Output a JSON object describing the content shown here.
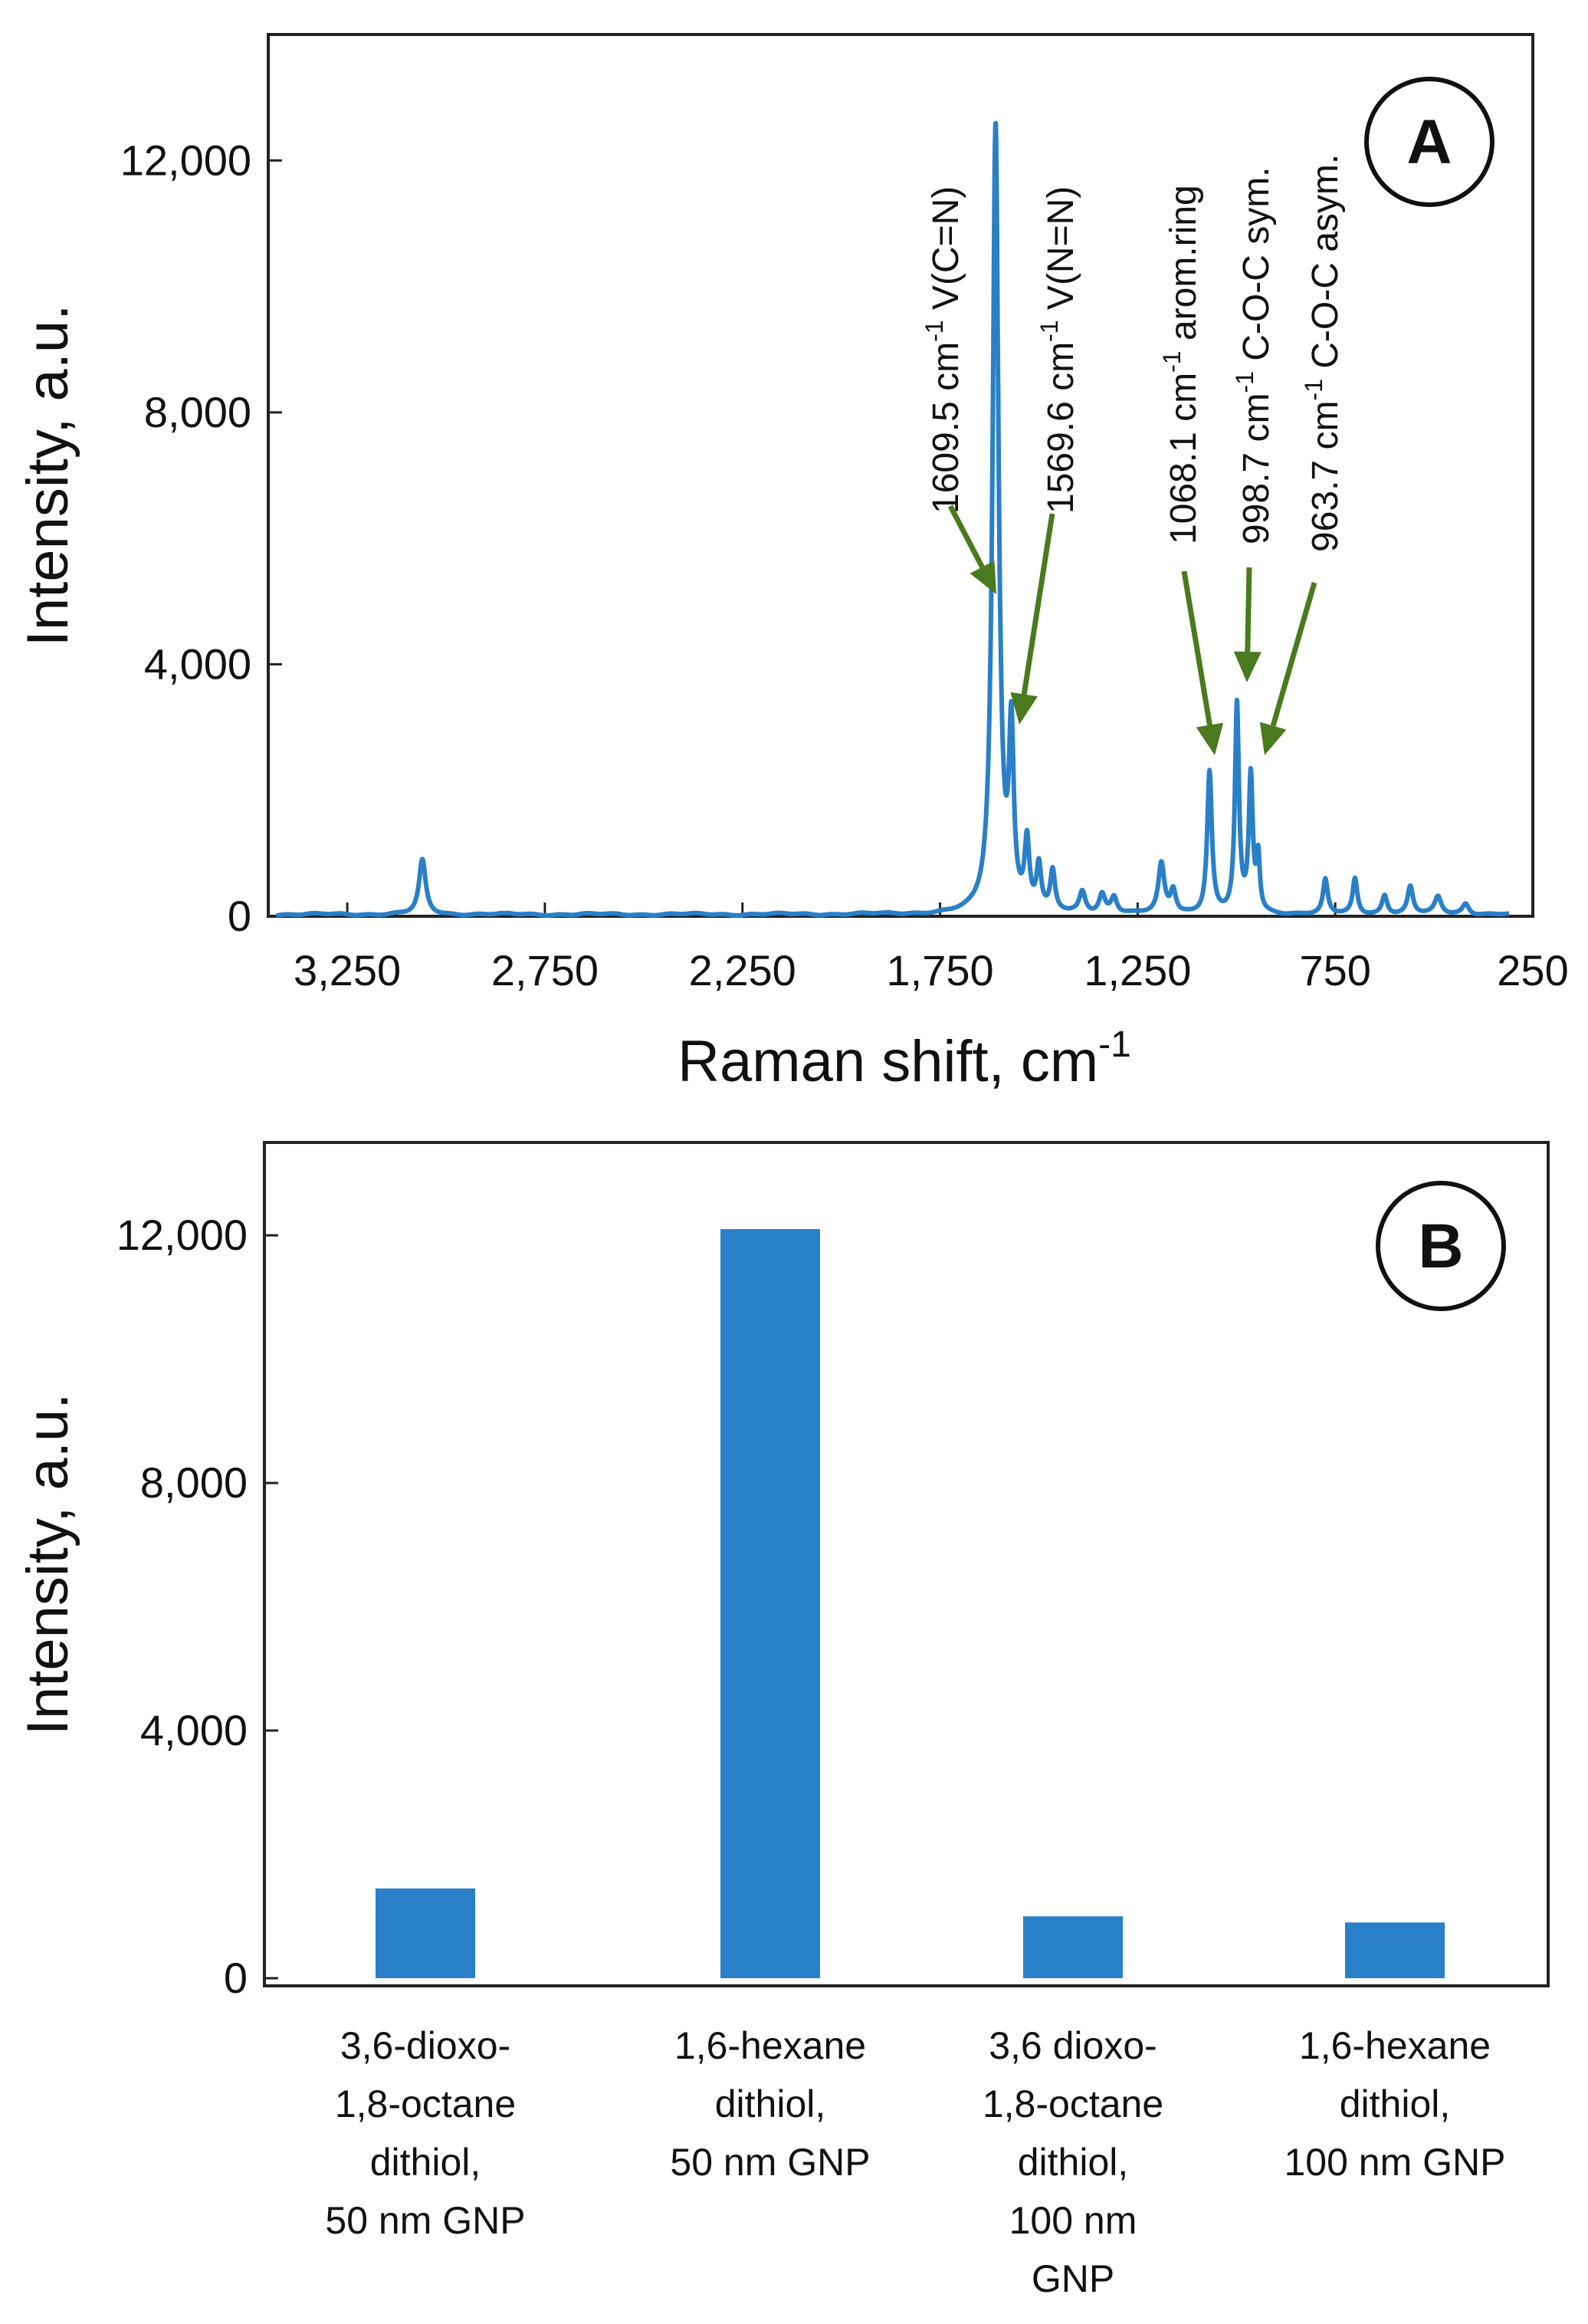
{
  "chart_data": [
    {
      "panel": "A",
      "type": "line",
      "xlabel": "Raman shift,  cm",
      "xlabel_sup": "-1",
      "ylabel": "Intensity,  a.u.",
      "xlim": [
        3450,
        250
      ],
      "ylim": [
        0,
        14000
      ],
      "x_axis_reversed": true,
      "x_ticks": [
        3250,
        2750,
        2250,
        1750,
        1250,
        750,
        250
      ],
      "x_tick_labels": [
        "3,250",
        "2,750",
        "2,250",
        "1,750",
        "1,250",
        "750",
        "250"
      ],
      "y_ticks": [
        0,
        4000,
        8000,
        12000
      ],
      "y_tick_labels": [
        "0",
        "4,000",
        "8,000",
        "12,000"
      ],
      "grid": false,
      "line_color": "#2a7fc9",
      "series": [
        {
          "peaks": [
            {
              "x": 3060,
              "y": 860,
              "w": 10
            },
            {
              "x": 1609.5,
              "y": 12500,
              "w": 9
            },
            {
              "x": 1569.6,
              "y": 2750,
              "w": 7
            },
            {
              "x": 1530,
              "y": 1050,
              "w": 7
            },
            {
              "x": 1500,
              "y": 700,
              "w": 7
            },
            {
              "x": 1465,
              "y": 620,
              "w": 7
            },
            {
              "x": 1390,
              "y": 330,
              "w": 9
            },
            {
              "x": 1340,
              "y": 300,
              "w": 9
            },
            {
              "x": 1310,
              "y": 260,
              "w": 9
            },
            {
              "x": 1190,
              "y": 780,
              "w": 9
            },
            {
              "x": 1160,
              "y": 360,
              "w": 8
            },
            {
              "x": 1068.1,
              "y": 2250,
              "w": 7
            },
            {
              "x": 998.7,
              "y": 3300,
              "w": 6
            },
            {
              "x": 963.7,
              "y": 2150,
              "w": 6
            },
            {
              "x": 945,
              "y": 850,
              "w": 5
            },
            {
              "x": 775,
              "y": 540,
              "w": 7
            },
            {
              "x": 700,
              "y": 560,
              "w": 7
            },
            {
              "x": 625,
              "y": 300,
              "w": 8
            },
            {
              "x": 560,
              "y": 430,
              "w": 8
            },
            {
              "x": 490,
              "y": 270,
              "w": 10
            },
            {
              "x": 420,
              "y": 170,
              "w": 10
            }
          ]
        }
      ],
      "annotations": [
        {
          "label": "1609.5 cm",
          "sup": "-1",
          "extra": "V(C=N)",
          "x": 1609.5,
          "y": 12500
        },
        {
          "label": "1569.6 cm",
          "sup": "-1",
          "extra": "V(N=N)",
          "x": 1569.6,
          "y": 2750
        },
        {
          "label": "1068.1 cm",
          "sup": "-1",
          "extra": "arom.ring",
          "x": 1068.1,
          "y": 2250
        },
        {
          "label": "998.7 cm",
          "sup": "-1",
          "extra": "C-O-C sym.",
          "x": 998.7,
          "y": 3300
        },
        {
          "label": "963.7 cm",
          "sup": "-1",
          "extra": "C-O-C asym.",
          "x": 963.7,
          "y": 2150
        }
      ],
      "annotation_arrow_color": "#4a7a1e"
    },
    {
      "panel": "B",
      "type": "bar",
      "ylabel": "Intensity,  a.u.",
      "ylim": [
        0,
        13500
      ],
      "y_ticks": [
        0,
        4000,
        8000,
        12000
      ],
      "y_tick_labels": [
        "0",
        "4,000",
        "8,000",
        "12,000"
      ],
      "grid": false,
      "bar_color": "#2a7fc9",
      "categories": [
        [
          "3,6-dioxo-",
          "1,8-octane",
          "dithiol,",
          "50 nm GNP"
        ],
        [
          "1,6-hexane",
          "dithiol,",
          "50 nm GNP"
        ],
        [
          "3,6 dioxo-",
          "1,8-octane",
          "dithiol,",
          "100 nm",
          "GNP"
        ],
        [
          "1,6-hexane",
          "dithiol,",
          "100 nm GNP"
        ]
      ],
      "values": [
        1450,
        12100,
        1000,
        900
      ]
    }
  ]
}
